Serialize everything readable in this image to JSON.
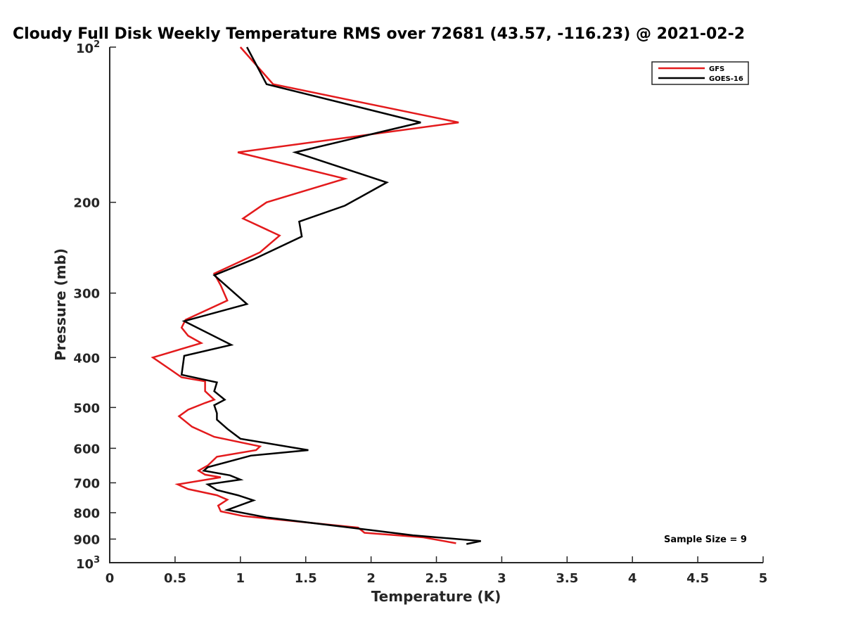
{
  "chart_data": {
    "type": "line",
    "title": "Cloudy Full Disk Weekly Temperature RMS over 72681 (43.57, -116.23) @ 2021-02-2",
    "xlabel": "Temperature (K)",
    "ylabel": "Pressure (mb)",
    "xlim": [
      0,
      5
    ],
    "ylim": [
      100,
      1000
    ],
    "y_scale": "log",
    "y_reversed": true,
    "x_ticks": [
      "0",
      "0.5",
      "1",
      "1.5",
      "2",
      "2.5",
      "3",
      "3.5",
      "4",
      "4.5",
      "5"
    ],
    "x_tick_values": [
      0,
      0.5,
      1,
      1.5,
      2,
      2.5,
      3,
      3.5,
      4,
      4.5,
      5
    ],
    "y_ticks": [
      {
        "value": 200,
        "label": "200"
      },
      {
        "value": 300,
        "label": "300"
      },
      {
        "value": 400,
        "label": "400"
      },
      {
        "value": 500,
        "label": "500"
      },
      {
        "value": 600,
        "label": "600"
      },
      {
        "value": 700,
        "label": "700"
      },
      {
        "value": 800,
        "label": "800"
      },
      {
        "value": 900,
        "label": "900"
      }
    ],
    "y_ticks_pow": [
      {
        "value": 100,
        "base": "10",
        "exp": "2"
      },
      {
        "value": 1000,
        "base": "10",
        "exp": "3"
      }
    ],
    "grid": false,
    "legend_position": "top-right",
    "annotation": "Sample Size = 9",
    "series": [
      {
        "name": "GFS",
        "color": "#e31a1c",
        "points": [
          [
            1.0,
            100
          ],
          [
            1.25,
            118
          ],
          [
            2.67,
            140
          ],
          [
            0.98,
            160
          ],
          [
            1.8,
            180
          ],
          [
            1.2,
            200
          ],
          [
            1.02,
            215
          ],
          [
            1.3,
            232
          ],
          [
            1.15,
            250
          ],
          [
            0.8,
            275
          ],
          [
            0.85,
            290
          ],
          [
            0.9,
            310
          ],
          [
            0.58,
            338
          ],
          [
            0.55,
            350
          ],
          [
            0.6,
            363
          ],
          [
            0.7,
            375
          ],
          [
            0.33,
            400
          ],
          [
            0.47,
            423
          ],
          [
            0.55,
            437
          ],
          [
            0.73,
            445
          ],
          [
            0.73,
            465
          ],
          [
            0.8,
            483
          ],
          [
            0.73,
            490
          ],
          [
            0.6,
            505
          ],
          [
            0.53,
            520
          ],
          [
            0.63,
            545
          ],
          [
            0.8,
            570
          ],
          [
            1.15,
            595
          ],
          [
            1.12,
            605
          ],
          [
            0.82,
            623
          ],
          [
            0.75,
            648
          ],
          [
            0.68,
            663
          ],
          [
            0.73,
            675
          ],
          [
            0.85,
            683
          ],
          [
            0.52,
            705
          ],
          [
            0.6,
            720
          ],
          [
            0.82,
            740
          ],
          [
            0.9,
            755
          ],
          [
            0.83,
            775
          ],
          [
            0.85,
            795
          ],
          [
            1.02,
            812
          ],
          [
            1.9,
            855
          ],
          [
            1.95,
            875
          ],
          [
            2.4,
            893
          ],
          [
            2.65,
            917
          ]
        ]
      },
      {
        "name": "GOES-16",
        "color": "#000000",
        "points": [
          [
            1.05,
            100
          ],
          [
            1.2,
            118
          ],
          [
            2.38,
            140
          ],
          [
            1.42,
            160
          ],
          [
            2.12,
            183
          ],
          [
            1.8,
            203
          ],
          [
            1.45,
            218
          ],
          [
            1.47,
            233
          ],
          [
            1.1,
            258
          ],
          [
            0.8,
            277
          ],
          [
            1.05,
            315
          ],
          [
            0.57,
            340
          ],
          [
            0.93,
            378
          ],
          [
            0.57,
            397
          ],
          [
            0.55,
            432
          ],
          [
            0.82,
            447
          ],
          [
            0.8,
            465
          ],
          [
            0.88,
            483
          ],
          [
            0.8,
            495
          ],
          [
            0.82,
            513
          ],
          [
            0.82,
            528
          ],
          [
            0.9,
            550
          ],
          [
            1.0,
            575
          ],
          [
            1.52,
            605
          ],
          [
            1.08,
            620
          ],
          [
            0.75,
            653
          ],
          [
            0.72,
            663
          ],
          [
            0.92,
            677
          ],
          [
            1.0,
            690
          ],
          [
            0.75,
            705
          ],
          [
            0.82,
            723
          ],
          [
            0.98,
            740
          ],
          [
            1.1,
            757
          ],
          [
            0.9,
            790
          ],
          [
            1.2,
            817
          ],
          [
            2.0,
            865
          ],
          [
            2.32,
            885
          ],
          [
            2.84,
            908
          ],
          [
            2.73,
            920
          ]
        ]
      }
    ]
  }
}
